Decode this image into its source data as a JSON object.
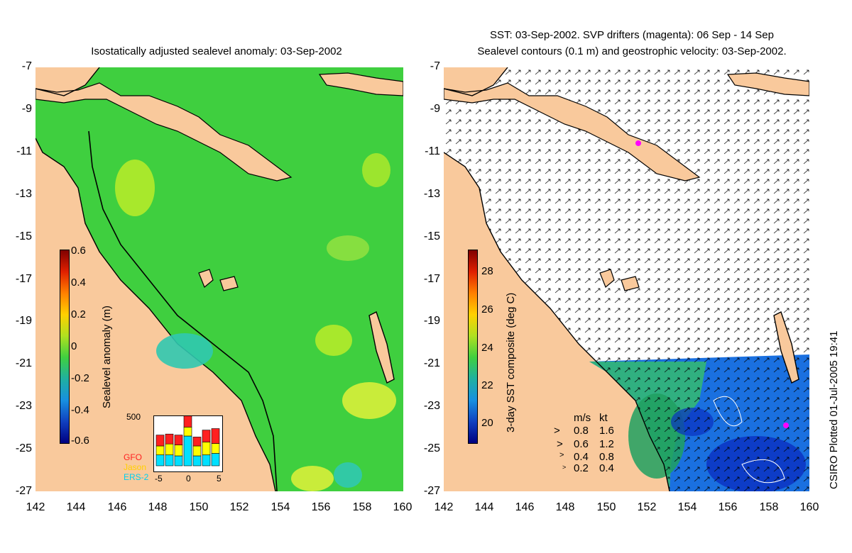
{
  "left_panel": {
    "title": "Isostatically adjusted sealevel anomaly: 03-Sep-2002",
    "y_ticks": [
      "-7",
      "-9",
      "-11",
      "-13",
      "-15",
      "-17",
      "-19",
      "-21",
      "-23",
      "-25",
      "-27"
    ],
    "x_ticks": [
      "142",
      "144",
      "146",
      "148",
      "150",
      "152",
      "154",
      "156",
      "158",
      "160"
    ],
    "colorbar": {
      "label": "Sealevel anomaly (m)",
      "ticks": [
        "0.6",
        "0.4",
        "0.2",
        "0",
        "-0.2",
        "-0.4",
        "-0.6"
      ],
      "range": [
        -0.6,
        0.6
      ]
    },
    "inset": {
      "y_max_label": "500",
      "x_ticks": [
        "-5",
        "0",
        "5"
      ],
      "legend": [
        {
          "name": "GFO",
          "color": "#ff2020"
        },
        {
          "name": "Jason",
          "color": "#ffff00"
        },
        {
          "name": "ERS-2",
          "color": "#00e0ff"
        }
      ],
      "bars": [
        {
          "ers2": 0.22,
          "jason": 0.18,
          "gfo": 0.22
        },
        {
          "ers2": 0.22,
          "jason": 0.22,
          "gfo": 0.2
        },
        {
          "ers2": 0.2,
          "jason": 0.22,
          "gfo": 0.2
        },
        {
          "ers2": 0.6,
          "jason": 0.18,
          "gfo": 0.24
        },
        {
          "ers2": 0.2,
          "jason": 0.2,
          "gfo": 0.18
        },
        {
          "ers2": 0.22,
          "jason": 0.26,
          "gfo": 0.24
        },
        {
          "ers2": 0.25,
          "jason": 0.2,
          "gfo": 0.3
        }
      ]
    }
  },
  "right_panel": {
    "title_line1": "SST: 03-Sep-2002. SVP drifters (magenta): 06 Sep - 14 Sep",
    "title_line2": "Sealevel contours (0.1 m) and geostrophic velocity: 03-Sep-2002.",
    "y_ticks": [
      "-7",
      "-9",
      "-11",
      "-13",
      "-15",
      "-17",
      "-19",
      "-21",
      "-23",
      "-25",
      "-27"
    ],
    "x_ticks": [
      "142",
      "144",
      "146",
      "148",
      "150",
      "152",
      "154",
      "156",
      "158",
      "160"
    ],
    "colorbar": {
      "label": "3-day SST composite (deg C)",
      "ticks": [
        "28",
        "26",
        "24",
        "22",
        "20"
      ],
      "range": [
        19,
        29.5
      ]
    },
    "velocity_legend": {
      "header_ms": "m/s",
      "header_kt": "kt",
      "rows": [
        {
          "ms": "0.8",
          "kt": "1.6"
        },
        {
          "ms": "0.6",
          "kt": "1.2"
        },
        {
          "ms": "0.4",
          "kt": "0.8"
        },
        {
          "ms": "0.2",
          "kt": "0.4"
        }
      ]
    }
  },
  "side_caption": "CSIRO Plotted 01-Jul-2005 19:41",
  "colors": {
    "land": "#f9c99c",
    "sea_green": "#3fcf3f",
    "sea_light": "#6fe030",
    "sea_cyan": "#30c8b0",
    "sst_blue": "#1060e0",
    "sst_dark": "#0020b0",
    "drifter": "#ff00ff"
  }
}
